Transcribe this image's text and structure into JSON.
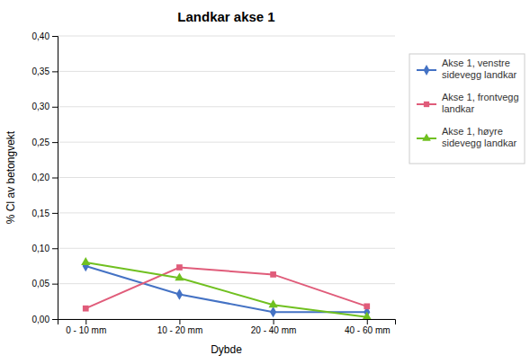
{
  "chart_data": {
    "type": "line",
    "title": "Landkar akse 1",
    "xlabel": "Dybde",
    "ylabel": "% Cl av betongvekt",
    "categories": [
      "0 - 10 mm",
      "10 - 20 mm",
      "20 - 40 mm",
      "40 - 60 mm"
    ],
    "series": [
      {
        "name": "Akse 1, venstre\nsidevegg landkar",
        "color": "#4472c4",
        "marker": "diamond",
        "values": [
          0.075,
          0.035,
          0.01,
          0.01
        ]
      },
      {
        "name": "Akse 1, frontvegg\nlandkar",
        "color": "#e05c7a",
        "marker": "square",
        "values": [
          0.015,
          0.073,
          0.063,
          0.018
        ]
      },
      {
        "name": "Akse 1, høyre\nsidevegg landkar",
        "color": "#70c020",
        "marker": "triangle",
        "values": [
          0.08,
          0.058,
          0.02,
          0.003
        ]
      }
    ],
    "ylim": [
      0.0,
      0.4
    ],
    "yticks": [
      {
        "value": 0.0,
        "label": "0,00"
      },
      {
        "value": 0.05,
        "label": "0,05"
      },
      {
        "value": 0.1,
        "label": "0,10"
      },
      {
        "value": 0.15,
        "label": "0,15"
      },
      {
        "value": 0.2,
        "label": "0,20"
      },
      {
        "value": 0.25,
        "label": "0,25"
      },
      {
        "value": 0.3,
        "label": "0,30"
      },
      {
        "value": 0.35,
        "label": "0,35"
      },
      {
        "value": 0.4,
        "label": "0,40"
      }
    ],
    "grid": true,
    "legend": "right"
  }
}
